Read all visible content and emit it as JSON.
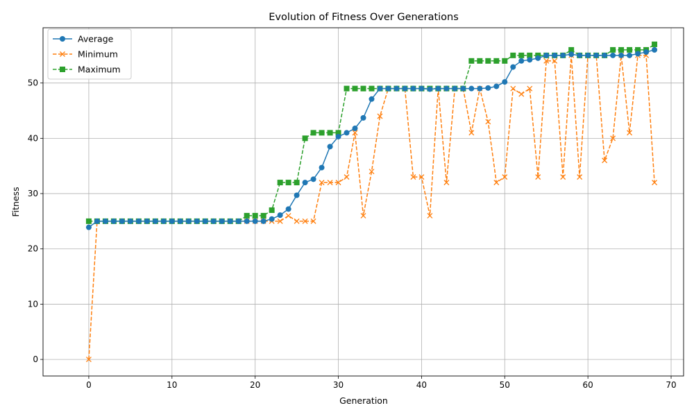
{
  "chart_data": {
    "type": "line",
    "title": "Evolution of Fitness Over Generations",
    "xlabel": "Generation",
    "ylabel": "Fitness",
    "xlim": [
      -5.5,
      71.5
    ],
    "ylim": [
      -3,
      60
    ],
    "xticks": [
      0,
      10,
      20,
      30,
      40,
      50,
      60,
      70
    ],
    "yticks": [
      0,
      10,
      20,
      30,
      40,
      50
    ],
    "grid": true,
    "legend_position": "top-left",
    "x": [
      0,
      1,
      2,
      3,
      4,
      5,
      6,
      7,
      8,
      9,
      10,
      11,
      12,
      13,
      14,
      15,
      16,
      17,
      18,
      19,
      20,
      21,
      22,
      23,
      24,
      25,
      26,
      27,
      28,
      29,
      30,
      31,
      32,
      33,
      34,
      35,
      36,
      37,
      38,
      39,
      40,
      41,
      42,
      43,
      44,
      45,
      46,
      47,
      48,
      49,
      50,
      51,
      52,
      53,
      54,
      55,
      56,
      57,
      58,
      59,
      60,
      61,
      62,
      63,
      64,
      65,
      66,
      67,
      68
    ],
    "series": [
      {
        "name": "Average",
        "color": "#1f77b4",
        "marker": "circle",
        "linestyle": "solid",
        "values": [
          23.9,
          25,
          25,
          25,
          25,
          25,
          25,
          25,
          25,
          25,
          25,
          25,
          25,
          25,
          25,
          25,
          25,
          25,
          25,
          25,
          25,
          25,
          25.4,
          26.1,
          27.2,
          29.7,
          32,
          32.6,
          34.7,
          38.5,
          40.3,
          41,
          41.8,
          43.7,
          47.1,
          49,
          49,
          49,
          49,
          49,
          49,
          48.9,
          49,
          49,
          49,
          49,
          49,
          49,
          49.1,
          49.4,
          50.2,
          52.9,
          54,
          54.2,
          54.5,
          55,
          55,
          55,
          55.2,
          55,
          55,
          55,
          55,
          55,
          55,
          55,
          55.3,
          55.6,
          56
        ]
      },
      {
        "name": "Minimum",
        "color": "#ff7f0e",
        "marker": "x",
        "linestyle": "dashed",
        "values": [
          0,
          25,
          25,
          25,
          25,
          25,
          25,
          25,
          25,
          25,
          25,
          25,
          25,
          25,
          25,
          25,
          25,
          25,
          25,
          25,
          25,
          25,
          25,
          25,
          26,
          25,
          25,
          25,
          32,
          32,
          32,
          33,
          41,
          26,
          34,
          44,
          49,
          49,
          49,
          33,
          33,
          26,
          49,
          32,
          49,
          49,
          41,
          49,
          43,
          32,
          33,
          49,
          48,
          49,
          33,
          54,
          54,
          33,
          55,
          33,
          55,
          55,
          36,
          40,
          55,
          41,
          55,
          55,
          32
        ]
      },
      {
        "name": "Maximum",
        "color": "#2ca02c",
        "marker": "square",
        "linestyle": "dashed",
        "values": [
          25,
          25,
          25,
          25,
          25,
          25,
          25,
          25,
          25,
          25,
          25,
          25,
          25,
          25,
          25,
          25,
          25,
          25,
          25,
          26,
          26,
          26,
          27,
          32,
          32,
          32,
          40,
          41,
          41,
          41,
          41,
          49,
          49,
          49,
          49,
          49,
          49,
          49,
          49,
          49,
          49,
          49,
          49,
          49,
          49,
          49,
          54,
          54,
          54,
          54,
          54,
          55,
          55,
          55,
          55,
          55,
          55,
          55,
          56,
          55,
          55,
          55,
          55,
          56,
          56,
          56,
          56,
          56,
          57
        ]
      }
    ]
  }
}
